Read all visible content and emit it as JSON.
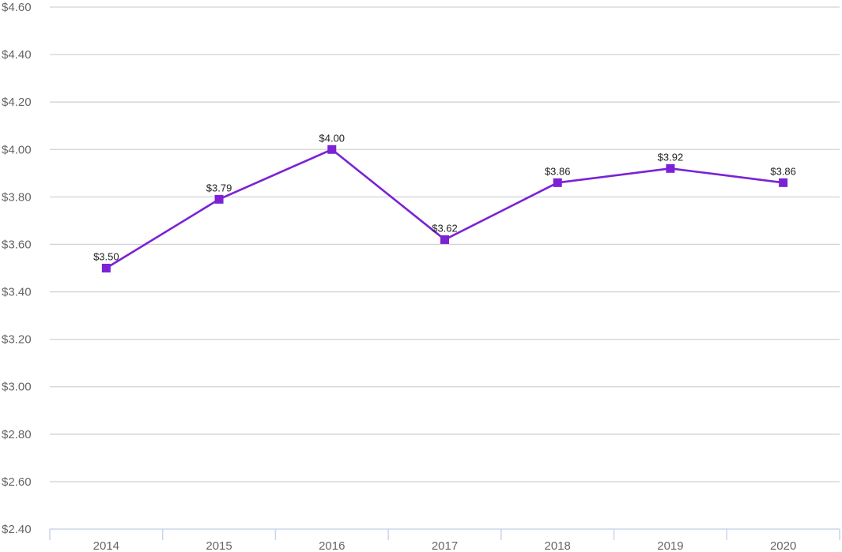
{
  "chart_data": {
    "type": "line",
    "title": "",
    "xlabel": "",
    "ylabel": "",
    "categories": [
      "2014",
      "2015",
      "2016",
      "2017",
      "2018",
      "2019",
      "2020"
    ],
    "series": [
      {
        "values": [
          3.5,
          3.79,
          4.0,
          3.62,
          3.86,
          3.92,
          3.86
        ],
        "data_labels": [
          "$3.50",
          "$3.79",
          "$4.00",
          "$3.62",
          "$3.86",
          "$3.92",
          "$3.86"
        ],
        "color": "#7b22d4",
        "marker": "square"
      }
    ],
    "ylim": [
      2.4,
      4.6
    ],
    "y_ticks": [
      2.4,
      2.6,
      2.8,
      3.0,
      3.2,
      3.4,
      3.6,
      3.8,
      4.0,
      4.2,
      4.4,
      4.6
    ],
    "y_tick_labels": [
      "$2.40",
      "$2.60",
      "$2.80",
      "$3.00",
      "$3.20",
      "$3.40",
      "$3.60",
      "$3.80",
      "$4.00",
      "$4.20",
      "$4.40",
      "$4.60"
    ],
    "grid": true,
    "legend": "none"
  }
}
